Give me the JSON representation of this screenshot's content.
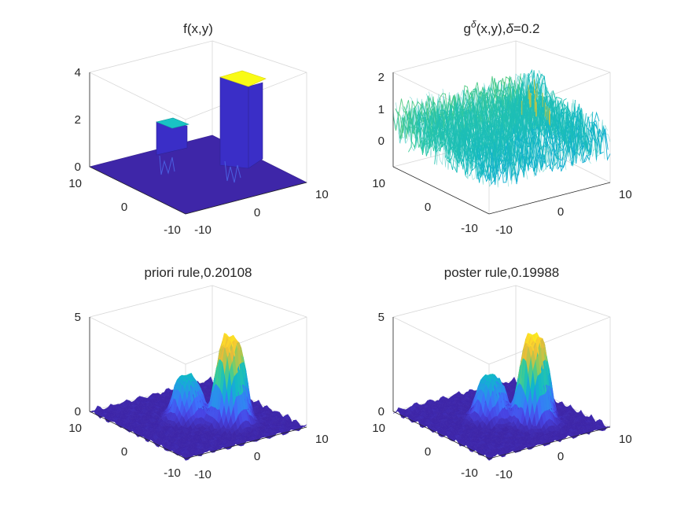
{
  "figure": {
    "colormap": [
      "#3e26a8",
      "#4743e3",
      "#3e71fc",
      "#2697e8",
      "#10b6cc",
      "#2ecaa1",
      "#8fcc5b",
      "#e8bb3a",
      "#fcd52c",
      "#f9fb15"
    ]
  },
  "chart_data": [
    {
      "type": "surface",
      "title_parts": [
        "f(x,y)"
      ],
      "x_ticks": [
        "-10",
        "0",
        "10"
      ],
      "y_ticks": [
        "-10",
        "0",
        "10"
      ],
      "z_ticks": [
        "0",
        "2",
        "4"
      ],
      "zlim": [
        0,
        4
      ],
      "xlim": [
        -10,
        10
      ],
      "ylim": [
        -10,
        10
      ],
      "blocks": [
        {
          "name": "",
          "x_range": [
            -3,
            1
          ],
          "y_range": [
            -1,
            3
          ],
          "height": 2
        },
        {
          "name": "",
          "x_range": [
            1,
            5
          ],
          "y_range": [
            -5,
            -1
          ],
          "height": 4
        }
      ]
    },
    {
      "type": "surface",
      "title_parts": [
        "g",
        "δ",
        "(x,y),",
        "δ",
        "=0.2"
      ],
      "x_ticks": [
        "-10",
        "0",
        "10"
      ],
      "y_ticks": [
        "-10",
        "0",
        "10"
      ],
      "z_ticks": [
        "0",
        "1",
        "2"
      ],
      "zlim": [
        -0.8,
        2.2
      ],
      "noise_level": 0.2,
      "peak_height": 1.6
    },
    {
      "type": "surface",
      "title_parts": [
        "priori rule,0.20108"
      ],
      "x_ticks": [
        "-10",
        "0",
        "10"
      ],
      "y_ticks": [
        "-10",
        "0",
        "10"
      ],
      "z_ticks": [
        "0",
        "5"
      ],
      "zlim": [
        0,
        5
      ],
      "peaks": [
        {
          "height": 2.3
        },
        {
          "height": 4.5
        }
      ]
    },
    {
      "type": "surface",
      "title_parts": [
        "poster rule,0.19988"
      ],
      "x_ticks": [
        "-10",
        "0",
        "10"
      ],
      "y_ticks": [
        "-10",
        "0",
        "10"
      ],
      "z_ticks": [
        "0",
        "5"
      ],
      "zlim": [
        0,
        5
      ],
      "peaks": [
        {
          "height": 2.3
        },
        {
          "height": 4.6
        }
      ]
    }
  ]
}
